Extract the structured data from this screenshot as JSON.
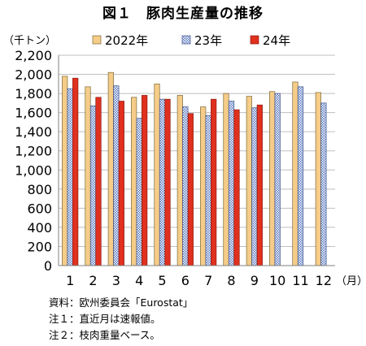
{
  "chart_data": {
    "type": "bar",
    "title": "図１　豚肉生産量の推移",
    "ylabel": "（千トン）",
    "xunit": "（月）",
    "categories": [
      "1",
      "2",
      "3",
      "4",
      "5",
      "6",
      "7",
      "8",
      "9",
      "10",
      "11",
      "12"
    ],
    "ylim": [
      0,
      2200
    ],
    "yticks": [
      "0",
      "200",
      "400",
      "600",
      "800",
      "1,000",
      "1,200",
      "1,400",
      "1,600",
      "1,800",
      "2,000",
      "2,200"
    ],
    "grid": true,
    "legend_position": "top",
    "series": [
      {
        "name": "2022年",
        "color": "#f5cc88",
        "pattern": "solid",
        "values": [
          1980,
          1870,
          2020,
          1760,
          1900,
          1780,
          1660,
          1800,
          1770,
          1820,
          1920,
          1810
        ]
      },
      {
        "name": "23年",
        "color": "#8aa3d4",
        "pattern": "checker",
        "values": [
          1850,
          1670,
          1880,
          1540,
          1740,
          1660,
          1570,
          1720,
          1650,
          1800,
          1870,
          1700
        ]
      },
      {
        "name": "24年",
        "color": "#e0301e",
        "pattern": "solid",
        "values": [
          1960,
          1760,
          1720,
          1780,
          1740,
          1590,
          1740,
          1630,
          1680,
          null,
          null,
          null
        ]
      }
    ]
  },
  "notes": [
    "資料：欧州委員会「Eurostat」",
    "注１：直近月は速報値。",
    "注２：枝肉重量ベース。"
  ]
}
